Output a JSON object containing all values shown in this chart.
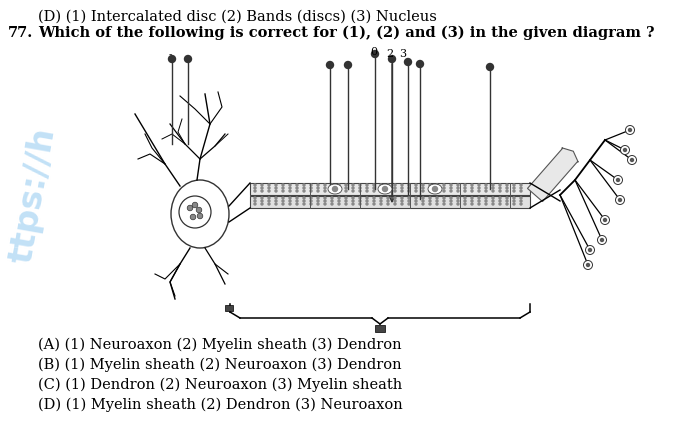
{
  "background_color": "#ffffff",
  "prev_answer": "(D) (1) Intercalated disc (2) Bands (discs) (3) Nucleus",
  "question_number": "77.",
  "question_text": "Which of the following is correct for (1), (2) and (3) in the given diagram ?",
  "options": [
    "(A) (1) Neuroaxon (2) Myelin sheath (3) Dendron",
    "(B) (1) Myelin sheath (2) Neuroaxon (3) Dendron",
    "(C) (1) Dendron (2) Neuroaxon (3) Myelin sheath",
    "(D) (1) Myelin sheath (2) Dendron (3) Neuroaxon"
  ],
  "watermark": "ttps://h",
  "font_size_question": 10.5,
  "font_size_options": 10.5
}
